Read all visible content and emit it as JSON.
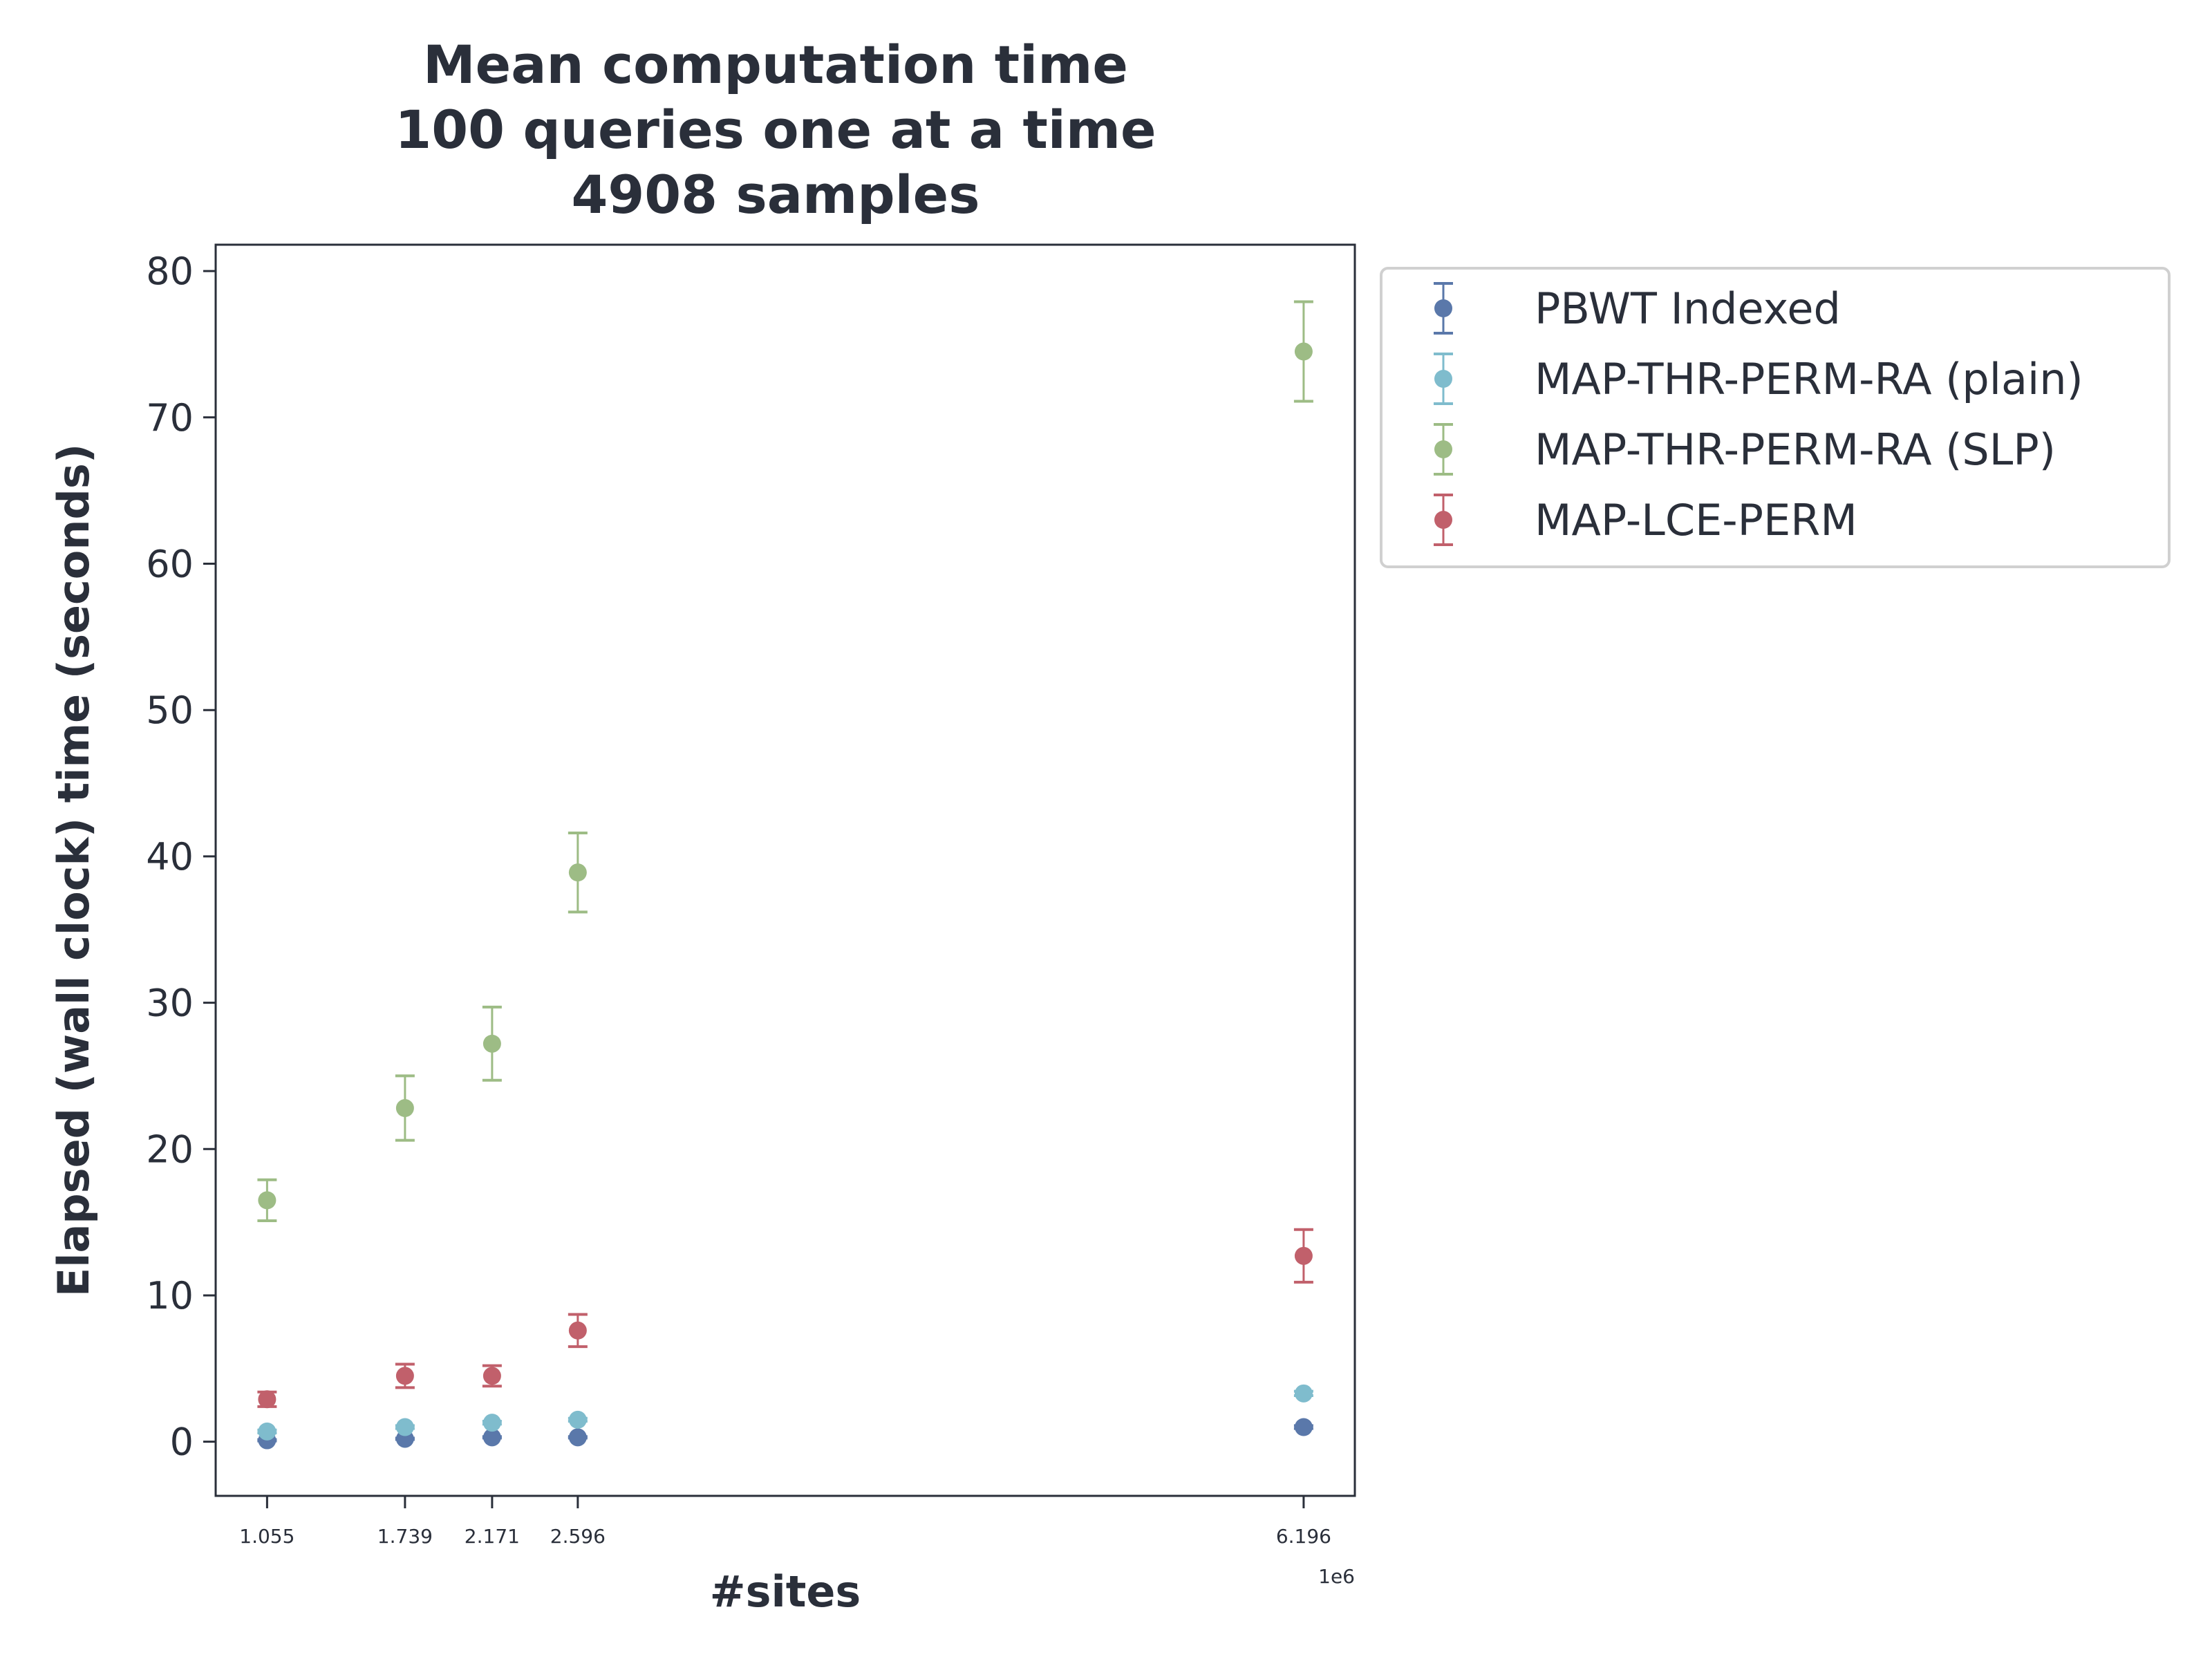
{
  "chart_data": {
    "type": "scatter",
    "title": [
      "Mean computation time",
      "100 queries one at a time",
      "4908 samples"
    ],
    "xlabel": "#sites",
    "ylabel": "Elapsed (wall clock) time (seconds)",
    "x_offset_label": "1e6",
    "x_ticks": [
      1.055,
      1.739,
      2.171,
      2.596,
      6.196
    ],
    "x_tick_labels": [
      "1.055",
      "1.739",
      "2.171",
      "2.596",
      "6.196"
    ],
    "y_ticks": [
      0,
      10,
      20,
      30,
      40,
      50,
      60,
      70,
      80
    ],
    "y_tick_labels": [
      "0",
      "10",
      "20",
      "30",
      "40",
      "50",
      "60",
      "70",
      "80"
    ],
    "xlim": [
      0.8,
      6.45
    ],
    "ylim": [
      -3.7,
      81.8
    ],
    "grid": false,
    "legend_position": "outside-top-right",
    "x": [
      1.055,
      1.739,
      2.171,
      2.596,
      6.196
    ],
    "series": [
      {
        "name": "PBWT Indexed",
        "color": "#5a78aa",
        "values": [
          0.1,
          0.2,
          0.3,
          0.3,
          1.0
        ],
        "err": [
          0.05,
          0.05,
          0.05,
          0.05,
          0.1
        ]
      },
      {
        "name": "MAP-THR-PERM-RA (plain)",
        "color": "#7fbccd",
        "values": [
          0.7,
          1.0,
          1.3,
          1.5,
          3.3
        ],
        "err": [
          0.1,
          0.1,
          0.1,
          0.1,
          0.15
        ]
      },
      {
        "name": "MAP-THR-PERM-RA (SLP)",
        "color": "#9dbc85",
        "values": [
          16.5,
          22.8,
          27.2,
          38.9,
          74.5
        ],
        "err": [
          1.4,
          2.2,
          2.5,
          2.7,
          3.4
        ]
      },
      {
        "name": "MAP-LCE-PERM",
        "color": "#c1606b",
        "values": [
          2.9,
          4.5,
          4.5,
          7.6,
          12.7
        ],
        "err": [
          0.5,
          0.8,
          0.7,
          1.1,
          1.8
        ]
      }
    ]
  }
}
